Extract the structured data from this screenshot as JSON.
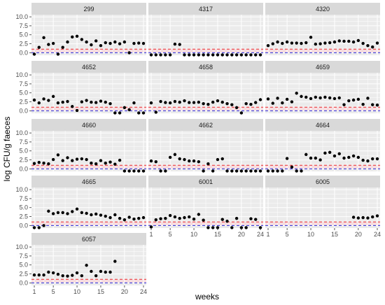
{
  "chart_data": {
    "type": "scatter",
    "facet_layout": "3 columns, 5 rows",
    "xlabel": "weeks",
    "ylabel": "log CFU/g faeces",
    "x_ticks": [
      1,
      5,
      10,
      15,
      20,
      24
    ],
    "y_ticks": [
      0.0,
      2.5,
      5.0,
      7.5,
      10.0
    ],
    "y_tick_labels": [
      "0.0",
      "2.5",
      "5.0",
      "7.5",
      "10.0"
    ],
    "xlim": [
      1,
      24
    ],
    "ylim": [
      -0.7,
      10.6
    ],
    "grid": true,
    "legend": "none",
    "reference_lines": [
      {
        "value": 1.0,
        "color": "#e8262a",
        "style": "dashed"
      },
      {
        "value": 0.0,
        "color": "#2626d8",
        "style": "dashed"
      }
    ],
    "reference_band": {
      "from": 0.0,
      "to": 1.0,
      "color": "#f7dcdf"
    },
    "colors": {
      "panel_bg": "#ebebeb",
      "strip_bg": "#d9d9d9",
      "grid": "#ffffff",
      "point": "#000000"
    },
    "facets": [
      {
        "label": "299",
        "values": [
          -0.4,
          1.5,
          4.2,
          2.3,
          2.6,
          -0.4,
          1.5,
          3.0,
          4.4,
          4.6,
          3.7,
          3.0,
          2.2,
          3.3,
          2.0,
          2.8,
          2.6,
          3.0,
          2.5,
          3.0,
          0.0,
          2.6,
          2.7,
          2.6
        ]
      },
      {
        "label": "4317",
        "values": [
          -0.6,
          -0.6,
          -0.6,
          -0.6,
          -0.6,
          2.4,
          2.3,
          -0.6,
          -0.6,
          -0.6,
          -0.6,
          -0.6,
          -0.6,
          -0.6,
          -0.6,
          -0.6,
          -0.6,
          -0.6,
          -0.6,
          -0.6,
          -0.6,
          -0.6,
          -0.6,
          -0.6
        ]
      },
      {
        "label": "4320",
        "values": [
          2.0,
          2.5,
          3.0,
          2.6,
          3.0,
          2.7,
          2.7,
          2.6,
          2.8,
          4.3,
          2.4,
          2.5,
          2.7,
          2.8,
          3.0,
          3.3,
          3.2,
          3.2,
          3.0,
          3.4,
          2.6,
          2.0,
          1.6,
          2.7
        ]
      },
      {
        "label": "4652",
        "values": [
          3.0,
          2.2,
          3.3,
          2.9,
          4.0,
          2.2,
          2.4,
          2.6,
          1.2,
          0.1,
          2.5,
          2.9,
          2.4,
          2.3,
          2.7,
          2.4,
          2.0,
          -0.6,
          -0.6,
          0.9,
          0.3,
          2.2,
          -0.6,
          -0.6
        ]
      },
      {
        "label": "4658",
        "values": [
          2.2,
          -0.4,
          2.6,
          2.3,
          2.2,
          2.6,
          2.4,
          2.8,
          2.3,
          2.3,
          2.4,
          2.0,
          1.8,
          2.4,
          2.8,
          2.4,
          2.0,
          1.7,
          0.9,
          -0.6,
          2.0,
          1.8,
          2.3,
          3.1
        ]
      },
      {
        "label": "4659",
        "values": [
          3.3,
          2.1,
          3.5,
          2.2,
          3.2,
          2.5,
          4.9,
          4.0,
          3.8,
          3.4,
          3.8,
          3.6,
          3.8,
          3.6,
          3.4,
          3.6,
          1.7,
          2.8,
          3.0,
          3.2,
          1.8,
          3.5,
          1.7,
          1.6
        ]
      },
      {
        "label": "4660",
        "values": [
          1.5,
          1.8,
          1.6,
          1.4,
          2.6,
          3.9,
          2.3,
          3.1,
          2.3,
          2.7,
          2.8,
          2.6,
          1.6,
          1.4,
          2.3,
          1.6,
          1.9,
          1.3,
          2.4,
          -0.6,
          -0.6,
          -0.6,
          -0.6,
          -0.6
        ]
      },
      {
        "label": "4662",
        "values": [
          2.2,
          2.0,
          -0.6,
          -0.6,
          3.2,
          4.0,
          2.8,
          2.6,
          2.2,
          2.2,
          2.0,
          -0.6,
          1.4,
          -0.6,
          2.6,
          2.8,
          -0.6,
          -0.6,
          -0.6,
          -0.6,
          -0.6,
          -0.6,
          -0.6,
          -0.6
        ]
      },
      {
        "label": "4664",
        "values": [
          -0.6,
          -0.6,
          -0.6,
          -0.6,
          2.9,
          0.5,
          -0.6,
          -0.6,
          4.0,
          3.0,
          3.0,
          2.5,
          4.4,
          4.6,
          3.6,
          4.2,
          3.0,
          3.2,
          3.6,
          3.2,
          2.4,
          2.2,
          2.8,
          2.8
        ]
      },
      {
        "label": "4665",
        "values": [
          -0.6,
          -0.6,
          0.0,
          4.0,
          3.3,
          3.6,
          3.6,
          3.3,
          3.9,
          4.6,
          3.6,
          3.4,
          3.0,
          3.2,
          2.9,
          2.6,
          2.2,
          3.0,
          2.0,
          1.6,
          2.3,
          1.8,
          2.0,
          2.2
        ]
      },
      {
        "label": "6001",
        "values": [
          -0.4,
          1.6,
          1.9,
          2.0,
          2.8,
          2.4,
          2.0,
          2.2,
          2.4,
          1.8,
          3.1,
          1.5,
          -0.6,
          -0.6,
          -0.6,
          1.7,
          1.2,
          -0.6,
          2.0,
          -0.6,
          -0.6,
          1.9,
          1.7,
          -0.6
        ]
      },
      {
        "label": "6005",
        "values": [
          null,
          null,
          null,
          null,
          null,
          null,
          null,
          null,
          null,
          null,
          null,
          null,
          null,
          null,
          null,
          null,
          null,
          null,
          2.3,
          2.1,
          2.2,
          2.1,
          2.4,
          2.7
        ]
      },
      {
        "label": "6057",
        "values": [
          2.2,
          2.2,
          2.2,
          3.0,
          2.8,
          2.4,
          2.0,
          1.9,
          2.1,
          2.8,
          2.0,
          4.9,
          3.2,
          2.0,
          3.2,
          3.0,
          3.0,
          6.0,
          null,
          null,
          null,
          null,
          null,
          null
        ]
      }
    ]
  }
}
